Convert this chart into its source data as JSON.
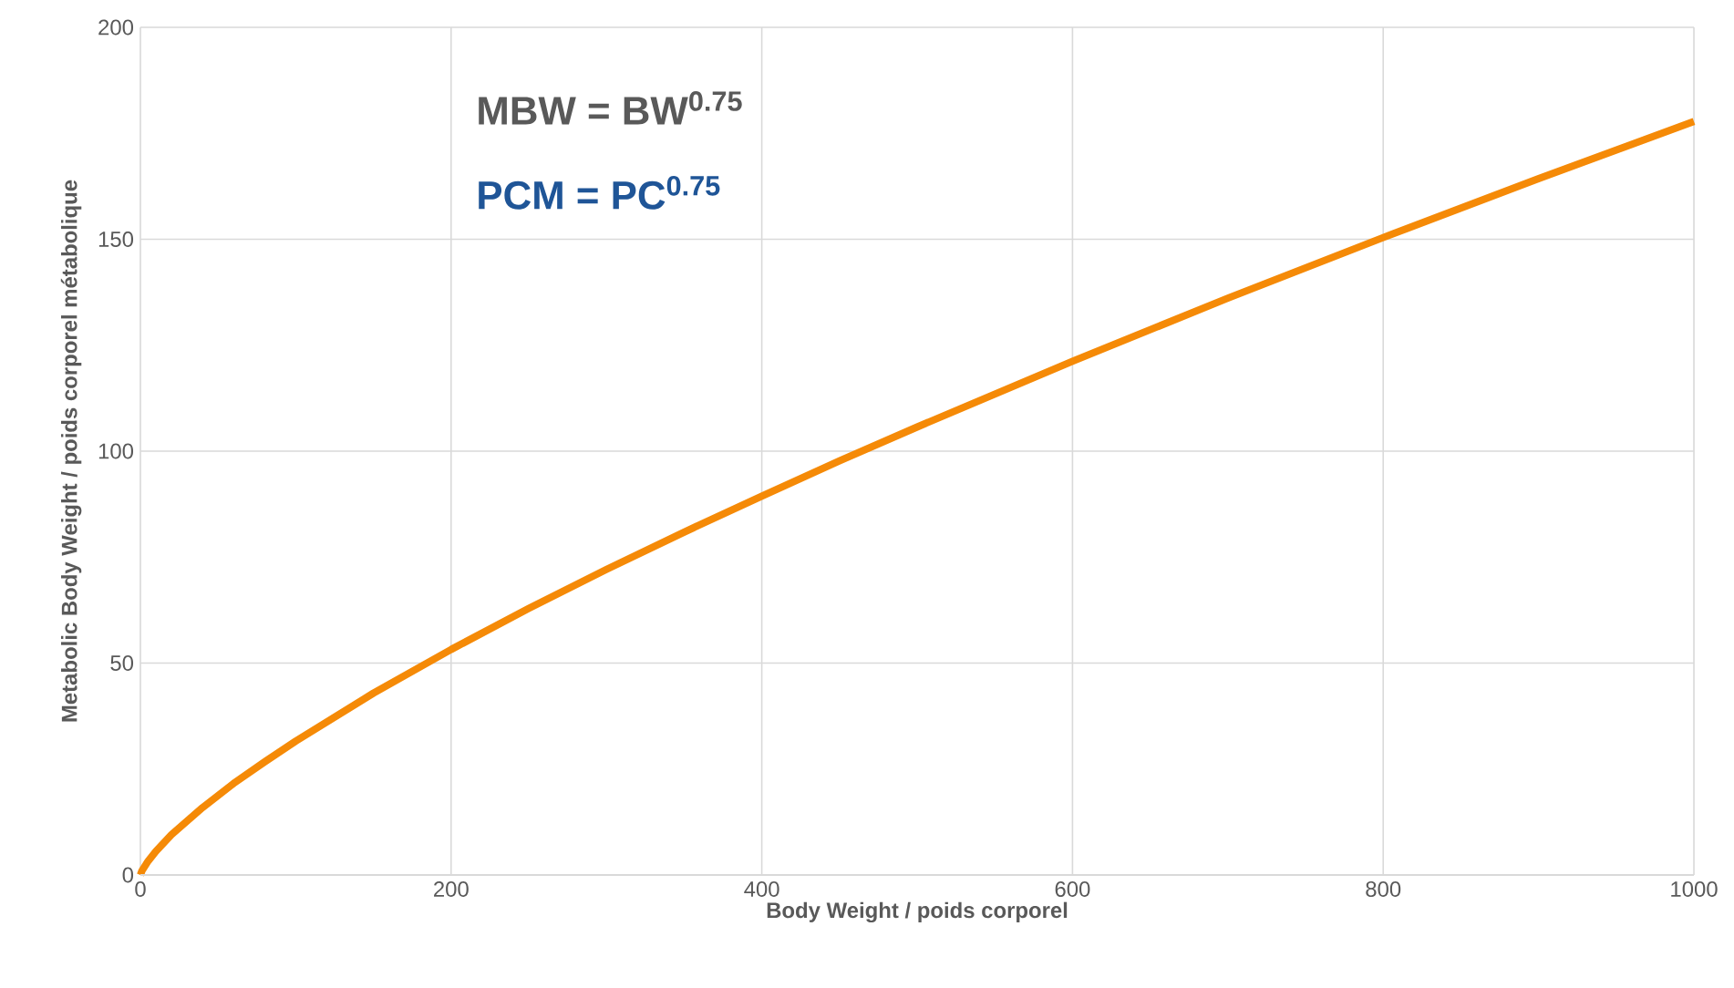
{
  "chart_data": {
    "type": "line",
    "xlabel": "Body Weight / poids corporel",
    "ylabel": "Metabolic Body Weight / poids corporel métabolique",
    "annotations": [
      "MBW = BW$^{0.75}$",
      "PCM = PC$^{0.75}$"
    ],
    "x": [
      0,
      1,
      5,
      10,
      20,
      40,
      60,
      80,
      100,
      150,
      200,
      250,
      300,
      350,
      400,
      450,
      500,
      600,
      700,
      800,
      900,
      1000
    ],
    "series": [
      {
        "color": "#f58a07",
        "values": [
          0,
          1,
          3.3,
          5.6,
          9.5,
          15.9,
          21.6,
          26.7,
          31.6,
          42.9,
          53.2,
          62.9,
          72.1,
          80.9,
          89.4,
          97.7,
          105.7,
          121.2,
          136.1,
          150.4,
          164.3,
          177.8
        ]
      }
    ],
    "xlim": [
      0,
      1000
    ],
    "ylim": [
      0,
      200
    ],
    "xticks": [
      0,
      200,
      400,
      600,
      800,
      1000
    ],
    "yticks": [
      0,
      50,
      100,
      150,
      200
    ],
    "grid": true,
    "marker": "none",
    "line_style": "solid"
  }
}
